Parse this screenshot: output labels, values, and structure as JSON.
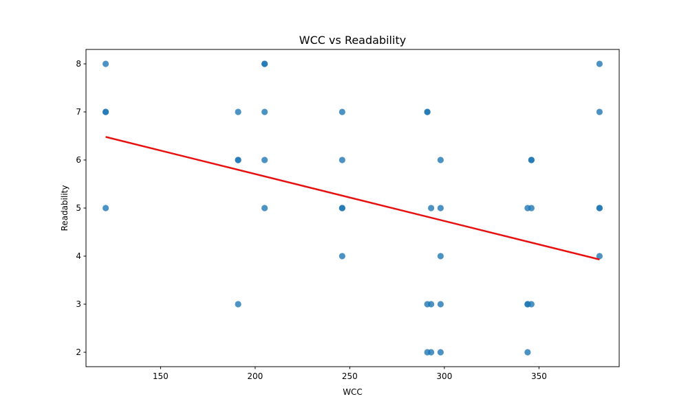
{
  "chart_data": {
    "type": "scatter",
    "title": "WCC vs Readability",
    "xlabel": "WCC",
    "ylabel": "Readability",
    "xlim": [
      110.6,
      392.4
    ],
    "ylim": [
      1.7,
      8.3
    ],
    "xticks": [
      150,
      200,
      250,
      300,
      350
    ],
    "yticks": [
      2,
      3,
      4,
      5,
      6,
      7,
      8
    ],
    "grid": false,
    "legend": "none",
    "point_color": "#1f77b4",
    "trendline_color": "#e8100f",
    "points": [
      {
        "x": 121,
        "y": 8
      },
      {
        "x": 121,
        "y": 7
      },
      {
        "x": 121,
        "y": 7
      },
      {
        "x": 121,
        "y": 5
      },
      {
        "x": 191,
        "y": 7
      },
      {
        "x": 191,
        "y": 6
      },
      {
        "x": 191,
        "y": 6
      },
      {
        "x": 191,
        "y": 3
      },
      {
        "x": 205,
        "y": 8
      },
      {
        "x": 205,
        "y": 8
      },
      {
        "x": 205,
        "y": 7
      },
      {
        "x": 205,
        "y": 6
      },
      {
        "x": 205,
        "y": 5
      },
      {
        "x": 246,
        "y": 7
      },
      {
        "x": 246,
        "y": 6
      },
      {
        "x": 246,
        "y": 5
      },
      {
        "x": 246,
        "y": 5
      },
      {
        "x": 246,
        "y": 4
      },
      {
        "x": 291,
        "y": 7
      },
      {
        "x": 291,
        "y": 7
      },
      {
        "x": 291,
        "y": 3
      },
      {
        "x": 291,
        "y": 2
      },
      {
        "x": 293,
        "y": 5
      },
      {
        "x": 293,
        "y": 3
      },
      {
        "x": 293,
        "y": 2
      },
      {
        "x": 298,
        "y": 6
      },
      {
        "x": 298,
        "y": 5
      },
      {
        "x": 298,
        "y": 4
      },
      {
        "x": 298,
        "y": 3
      },
      {
        "x": 298,
        "y": 2
      },
      {
        "x": 344,
        "y": 5
      },
      {
        "x": 344,
        "y": 3
      },
      {
        "x": 344,
        "y": 3
      },
      {
        "x": 344,
        "y": 2
      },
      {
        "x": 346,
        "y": 6
      },
      {
        "x": 346,
        "y": 6
      },
      {
        "x": 346,
        "y": 5
      },
      {
        "x": 346,
        "y": 3
      },
      {
        "x": 382,
        "y": 8
      },
      {
        "x": 382,
        "y": 7
      },
      {
        "x": 382,
        "y": 5
      },
      {
        "x": 382,
        "y": 5
      },
      {
        "x": 382,
        "y": 4
      }
    ],
    "trendline": {
      "x": [
        121,
        382
      ],
      "y": [
        6.48,
        3.93
      ]
    }
  }
}
